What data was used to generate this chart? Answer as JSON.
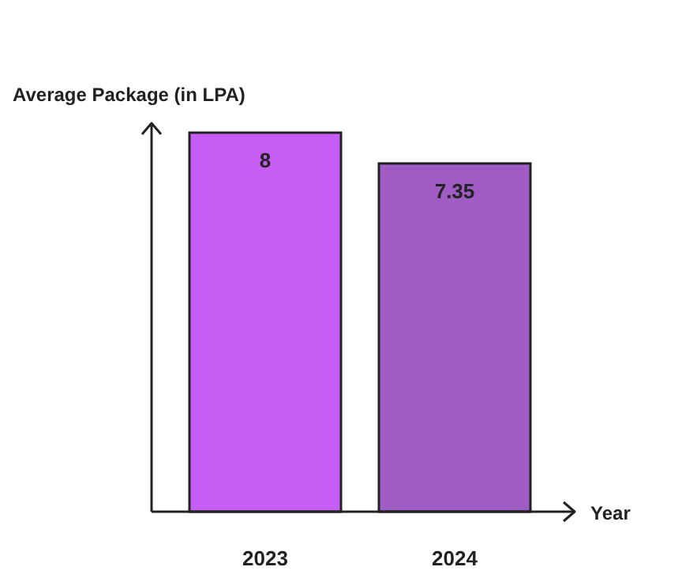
{
  "chart_data": {
    "type": "bar",
    "ylabel": "Average Package (in LPA)",
    "xlabel": "Year",
    "categories": [
      "2023",
      "2024"
    ],
    "values": [
      8,
      7.35
    ],
    "colors": [
      "#c65ef5",
      "#a05cc4"
    ],
    "data_labels": true,
    "relative": false
  }
}
